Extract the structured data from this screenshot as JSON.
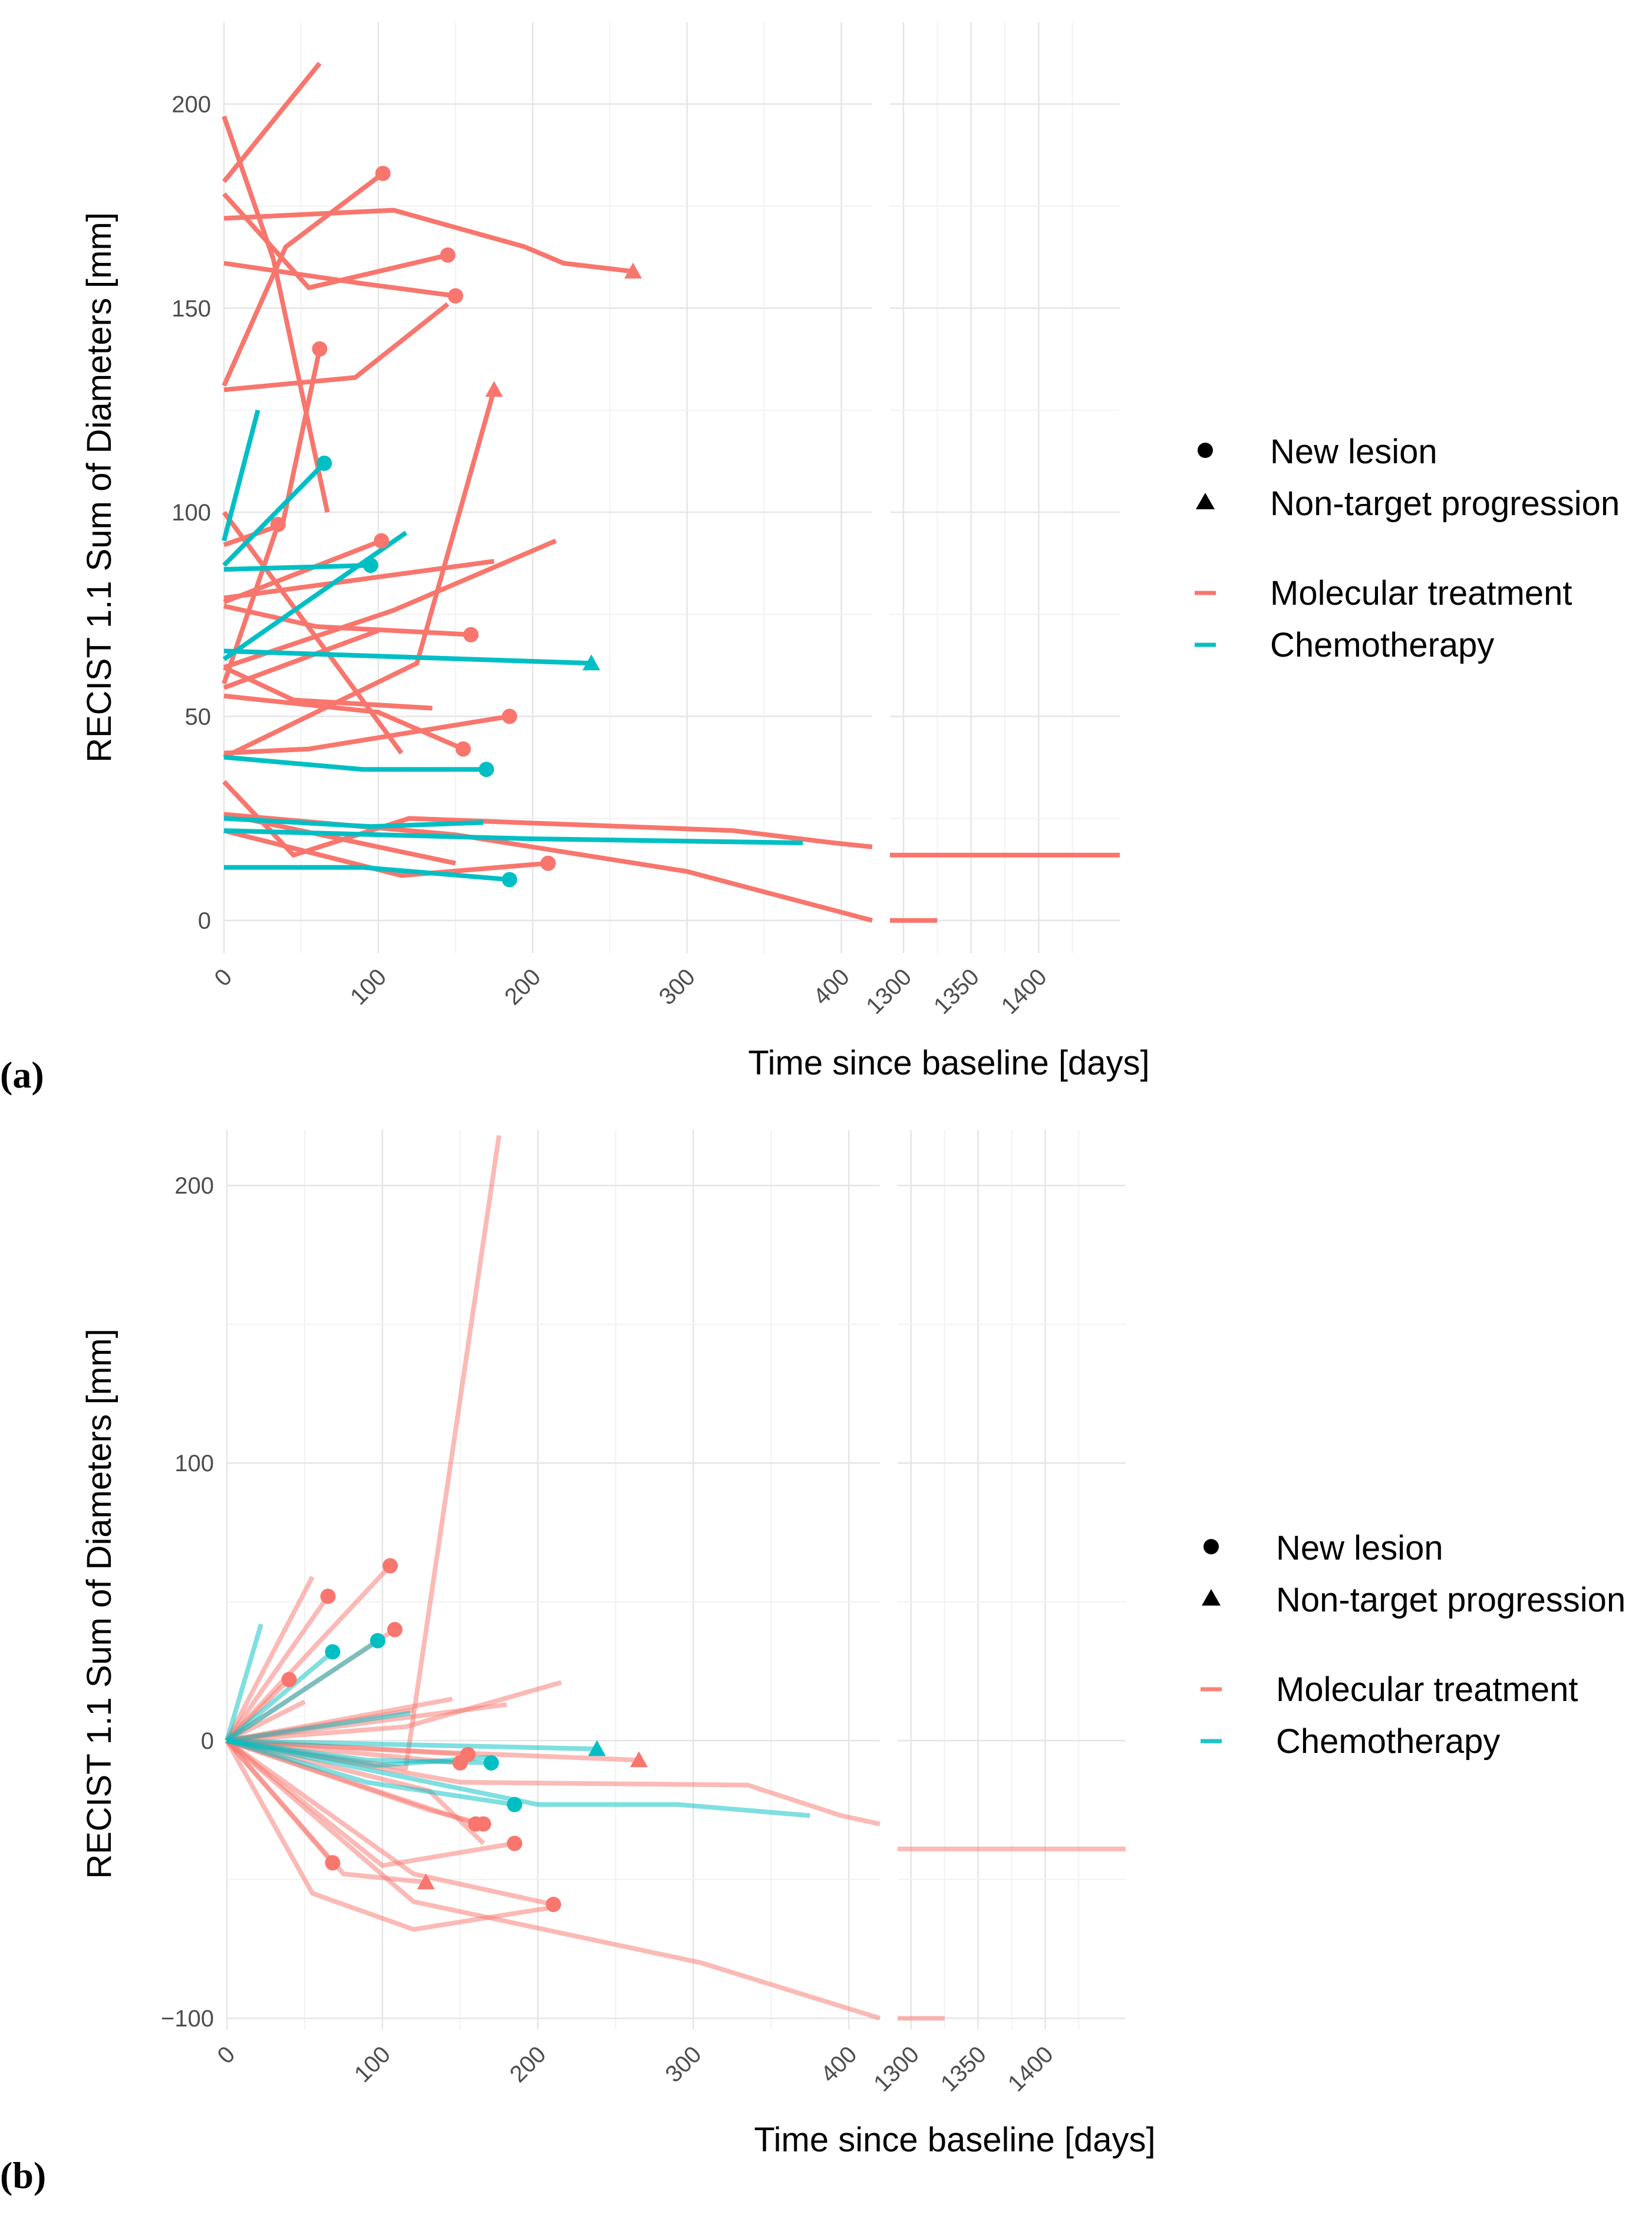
{
  "chart_data": [
    {
      "type": "line",
      "panel_label": "(a)",
      "xlabel": "Time since baseline [days]",
      "ylabel": "RECIST 1.1 Sum of Diameters [mm]",
      "x_segments": [
        {
          "domain": [
            0,
            420
          ],
          "ticks": [
            0,
            100,
            200,
            300,
            400
          ]
        },
        {
          "domain": [
            1290,
            1460
          ],
          "ticks": [
            1300,
            1350,
            1400
          ]
        }
      ],
      "ylim": [
        -8,
        220
      ],
      "yticks": [
        0,
        50,
        100,
        150,
        200
      ],
      "grid": true,
      "legend": {
        "placement": "right",
        "markers": [
          {
            "shape": "circle",
            "label": "New lesion"
          },
          {
            "shape": "triangle",
            "label": "Non-target progression"
          }
        ],
        "treatments": [
          {
            "label": "Molecular treatment",
            "color": "#F8766D"
          },
          {
            "label": "Chemotherapy",
            "color": "#00BFC4"
          }
        ]
      },
      "series": [
        {
          "group": "Molecular treatment",
          "x": [
            0,
            62
          ],
          "y": [
            181,
            210
          ]
        },
        {
          "group": "Molecular treatment",
          "x": [
            0,
            32,
            67
          ],
          "y": [
            197,
            162,
            100
          ]
        },
        {
          "group": "Molecular treatment",
          "x": [
            0,
            40,
            103
          ],
          "y": [
            131,
            165,
            183
          ],
          "end": "circle"
        },
        {
          "group": "Molecular treatment",
          "x": [
            0,
            110,
            195,
            220,
            265
          ],
          "y": [
            172,
            174,
            165,
            161,
            159
          ],
          "end": "triangle"
        },
        {
          "group": "Molecular treatment",
          "x": [
            0,
            55,
            145
          ],
          "y": [
            178,
            155,
            163
          ],
          "end": "circle"
        },
        {
          "group": "Molecular treatment",
          "x": [
            0,
            90,
            150
          ],
          "y": [
            161,
            156,
            153
          ],
          "end": "circle"
        },
        {
          "group": "Molecular treatment",
          "x": [
            0,
            85,
            145
          ],
          "y": [
            130,
            133,
            151
          ]
        },
        {
          "group": "Molecular treatment",
          "x": [
            0,
            38,
            62
          ],
          "y": [
            92,
            97,
            140
          ],
          "end": "circle"
        },
        {
          "group": "Molecular treatment",
          "x": [
            0,
            35
          ],
          "y": [
            58,
            97
          ],
          "end": "circle"
        },
        {
          "group": "Molecular treatment",
          "x": [
            0,
            102
          ],
          "y": [
            78,
            93
          ],
          "end": "circle"
        },
        {
          "group": "Molecular treatment",
          "x": [
            0,
            175
          ],
          "y": [
            79,
            88
          ]
        },
        {
          "group": "Molecular treatment",
          "x": [
            0,
            110,
            215
          ],
          "y": [
            62,
            76,
            93
          ]
        },
        {
          "group": "Molecular treatment",
          "x": [
            0,
            125,
            175
          ],
          "y": [
            40,
            63,
            130
          ],
          "end": "triangle"
        },
        {
          "group": "Molecular treatment",
          "x": [
            0,
            60,
            160
          ],
          "y": [
            77,
            72,
            70
          ],
          "end": "circle"
        },
        {
          "group": "Molecular treatment",
          "x": [
            0,
            100
          ],
          "y": [
            57,
            71
          ]
        },
        {
          "group": "Molecular treatment",
          "x": [
            0,
            45,
            135
          ],
          "y": [
            62,
            54,
            52
          ]
        },
        {
          "group": "Molecular treatment",
          "x": [
            0,
            100,
            155
          ],
          "y": [
            55,
            51,
            42
          ],
          "end": "circle"
        },
        {
          "group": "Molecular treatment",
          "x": [
            0,
            55,
            185
          ],
          "y": [
            41,
            42,
            50
          ],
          "end": "circle"
        },
        {
          "group": "Molecular treatment",
          "x": [
            0,
            115
          ],
          "y": [
            100,
            41
          ]
        },
        {
          "group": "Molecular treatment",
          "x": [
            0,
            45,
            120,
            330,
            395,
            420
          ],
          "y": [
            34,
            16,
            25,
            22,
            19,
            18
          ]
        },
        {
          "group": "Molecular treatment",
          "x": [
            0,
            150
          ],
          "y": [
            26,
            14
          ]
        },
        {
          "group": "Molecular treatment",
          "x": [
            0,
            115,
            210
          ],
          "y": [
            22,
            11,
            14
          ],
          "end": "circle"
        },
        {
          "group": "Molecular treatment",
          "x": [
            0,
            150,
            300,
            420
          ],
          "y": [
            26,
            21,
            12,
            0
          ]
        },
        {
          "group": "Molecular treatment",
          "x": [
            1290,
            1460
          ],
          "y": [
            16,
            16
          ]
        },
        {
          "group": "Molecular treatment",
          "x": [
            1290,
            1325
          ],
          "y": [
            0,
            0
          ]
        },
        {
          "group": "Chemotherapy",
          "x": [
            0,
            22
          ],
          "y": [
            93,
            125
          ]
        },
        {
          "group": "Chemotherapy",
          "x": [
            0,
            65
          ],
          "y": [
            87,
            112
          ],
          "end": "circle"
        },
        {
          "group": "Chemotherapy",
          "x": [
            0,
            95
          ],
          "y": [
            86,
            87
          ],
          "end": "circle"
        },
        {
          "group": "Chemotherapy",
          "x": [
            0,
            118
          ],
          "y": [
            64,
            95
          ]
        },
        {
          "group": "Chemotherapy",
          "x": [
            0,
            238
          ],
          "y": [
            66,
            63
          ],
          "end": "triangle"
        },
        {
          "group": "Chemotherapy",
          "x": [
            0,
            90,
            170
          ],
          "y": [
            40,
            37,
            37
          ],
          "end": "circle"
        },
        {
          "group": "Chemotherapy",
          "x": [
            0,
            95,
            168
          ],
          "y": [
            25,
            23,
            24
          ]
        },
        {
          "group": "Chemotherapy",
          "x": [
            0,
            200,
            375
          ],
          "y": [
            22,
            20,
            19
          ]
        },
        {
          "group": "Chemotherapy",
          "x": [
            0,
            90,
            185
          ],
          "y": [
            13,
            13,
            10
          ],
          "end": "circle"
        }
      ]
    },
    {
      "type": "line",
      "panel_label": "(b)",
      "xlabel": "Time since baseline [days]",
      "ylabel": "RECIST 1.1 Sum of Diameters [mm]",
      "x_segments": [
        {
          "domain": [
            0,
            420
          ],
          "ticks": [
            0,
            100,
            200,
            300,
            400
          ]
        },
        {
          "domain": [
            1290,
            1460
          ],
          "ticks": [
            1300,
            1350,
            1400
          ]
        }
      ],
      "ylim": [
        -104,
        220
      ],
      "yticks": [
        -100,
        0,
        100,
        200
      ],
      "grid": true,
      "legend": {
        "placement": "right",
        "markers": [
          {
            "shape": "circle",
            "label": "New lesion"
          },
          {
            "shape": "triangle",
            "label": "Non-target progression"
          }
        ],
        "treatments": [
          {
            "label": "Molecular treatment",
            "color": "#F8766D"
          },
          {
            "label": "Chemotherapy",
            "color": "#00BFC4"
          }
        ]
      },
      "series": [
        {
          "group": "Molecular treatment",
          "x": [
            0,
            115,
            175
          ],
          "y": [
            0,
            -10,
            218
          ]
        },
        {
          "group": "Molecular treatment",
          "x": [
            0,
            55
          ],
          "y": [
            0,
            59
          ]
        },
        {
          "group": "Molecular treatment",
          "x": [
            0,
            105
          ],
          "y": [
            0,
            63
          ],
          "end": "circle"
        },
        {
          "group": "Molecular treatment",
          "x": [
            0,
            65
          ],
          "y": [
            0,
            52
          ],
          "end": "circle"
        },
        {
          "group": "Molecular treatment",
          "x": [
            0,
            108
          ],
          "y": [
            0,
            40
          ],
          "end": "circle"
        },
        {
          "group": "Molecular treatment",
          "x": [
            0,
            40
          ],
          "y": [
            0,
            22
          ],
          "end": "circle"
        },
        {
          "group": "Molecular treatment",
          "x": [
            0,
            50
          ],
          "y": [
            0,
            14
          ]
        },
        {
          "group": "Molecular treatment",
          "x": [
            0,
            115,
            215
          ],
          "y": [
            0,
            5,
            21
          ]
        },
        {
          "group": "Molecular treatment",
          "x": [
            0,
            145
          ],
          "y": [
            0,
            15
          ]
        },
        {
          "group": "Molecular treatment",
          "x": [
            0,
            180
          ],
          "y": [
            0,
            13
          ]
        },
        {
          "group": "Molecular treatment",
          "x": [
            0,
            120
          ],
          "y": [
            0,
            11
          ]
        },
        {
          "group": "Molecular treatment",
          "x": [
            0,
            130,
            265
          ],
          "y": [
            0,
            -4,
            -7
          ],
          "end": "triangle"
        },
        {
          "group": "Molecular treatment",
          "x": [
            0,
            155
          ],
          "y": [
            0,
            -5
          ],
          "end": "circle"
        },
        {
          "group": "Molecular treatment",
          "x": [
            0,
            150
          ],
          "y": [
            0,
            -8
          ],
          "end": "circle"
        },
        {
          "group": "Molecular treatment",
          "x": [
            0,
            130,
            165
          ],
          "y": [
            0,
            -25,
            -30
          ],
          "end": "circle"
        },
        {
          "group": "Molecular treatment",
          "x": [
            0,
            160
          ],
          "y": [
            0,
            -30
          ],
          "end": "circle"
        },
        {
          "group": "Molecular treatment",
          "x": [
            0,
            130,
            165
          ],
          "y": [
            0,
            -18,
            -37
          ]
        },
        {
          "group": "Molecular treatment",
          "x": [
            0,
            100,
            185
          ],
          "y": [
            0,
            -45,
            -37
          ],
          "end": "circle"
        },
        {
          "group": "Molecular treatment",
          "x": [
            0,
            68
          ],
          "y": [
            0,
            -44
          ],
          "end": "circle"
        },
        {
          "group": "Molecular treatment",
          "x": [
            0,
            75,
            128
          ],
          "y": [
            0,
            -48,
            -51
          ],
          "end": "triangle"
        },
        {
          "group": "Molecular treatment",
          "x": [
            0,
            120,
            210
          ],
          "y": [
            0,
            -48,
            -59
          ],
          "end": "circle"
        },
        {
          "group": "Molecular treatment",
          "x": [
            0,
            55,
            120,
            210
          ],
          "y": [
            0,
            -55,
            -68,
            -60
          ]
        },
        {
          "group": "Molecular treatment",
          "x": [
            0,
            120,
            305,
            420
          ],
          "y": [
            0,
            -58,
            -80,
            -100
          ]
        },
        {
          "group": "Molecular treatment",
          "x": [
            0,
            150,
            335,
            395,
            420
          ],
          "y": [
            0,
            -15,
            -16,
            -27,
            -30
          ]
        },
        {
          "group": "Molecular treatment",
          "x": [
            1290,
            1460
          ],
          "y": [
            -39,
            -39
          ]
        },
        {
          "group": "Molecular treatment",
          "x": [
            1290,
            1325
          ],
          "y": [
            -100,
            -100
          ]
        },
        {
          "group": "Chemotherapy",
          "x": [
            0,
            22
          ],
          "y": [
            0,
            42
          ]
        },
        {
          "group": "Chemotherapy",
          "x": [
            0,
            68
          ],
          "y": [
            0,
            32
          ],
          "end": "circle"
        },
        {
          "group": "Chemotherapy",
          "x": [
            0,
            97
          ],
          "y": [
            0,
            36
          ],
          "end": "circle"
        },
        {
          "group": "Chemotherapy",
          "x": [
            0,
            118
          ],
          "y": [
            0,
            10
          ]
        },
        {
          "group": "Chemotherapy",
          "x": [
            0,
            238
          ],
          "y": [
            0,
            -3
          ],
          "end": "triangle"
        },
        {
          "group": "Chemotherapy",
          "x": [
            0,
            90,
            170
          ],
          "y": [
            0,
            -7,
            -8
          ],
          "end": "circle"
        },
        {
          "group": "Chemotherapy",
          "x": [
            0,
            95,
            168
          ],
          "y": [
            0,
            -9,
            -6
          ]
        },
        {
          "group": "Chemotherapy",
          "x": [
            0,
            200,
            290,
            375
          ],
          "y": [
            0,
            -23,
            -23,
            -27
          ]
        },
        {
          "group": "Chemotherapy",
          "x": [
            0,
            90,
            185
          ],
          "y": [
            0,
            -15,
            -23
          ],
          "end": "circle"
        }
      ]
    }
  ]
}
